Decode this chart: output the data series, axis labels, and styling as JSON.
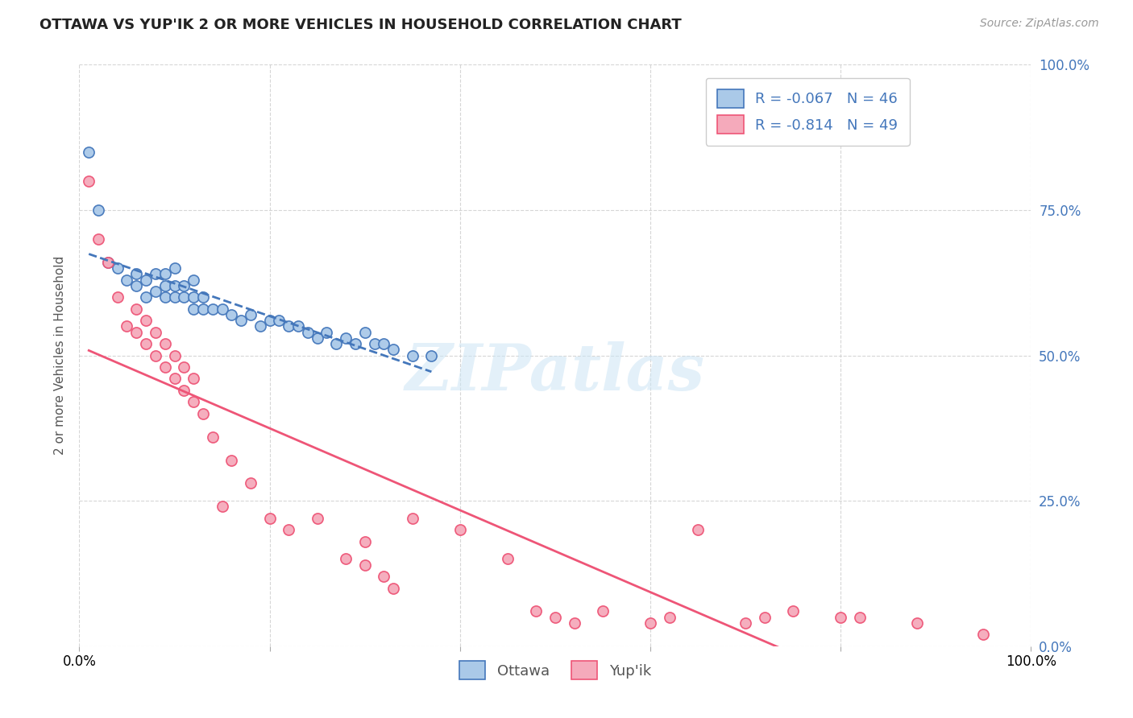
{
  "title": "OTTAWA VS YUP'IK 2 OR MORE VEHICLES IN HOUSEHOLD CORRELATION CHART",
  "source": "Source: ZipAtlas.com",
  "ylabel": "2 or more Vehicles in Household",
  "legend_labels": [
    "Ottawa",
    "Yup'ik"
  ],
  "ottawa_R": -0.067,
  "ottawa_N": 46,
  "yupik_R": -0.814,
  "yupik_N": 49,
  "xlim": [
    0.0,
    1.0
  ],
  "ylim": [
    0.0,
    1.0
  ],
  "watermark": "ZIPatlas",
  "ottawa_color": "#aac9e8",
  "yupik_color": "#f5aabb",
  "ottawa_line_color": "#4477bb",
  "yupik_line_color": "#ee5577",
  "grid_color": "#cccccc",
  "background_color": "#ffffff",
  "ottawa_x": [
    0.01,
    0.02,
    0.03,
    0.04,
    0.05,
    0.06,
    0.06,
    0.07,
    0.07,
    0.08,
    0.08,
    0.09,
    0.09,
    0.09,
    0.1,
    0.1,
    0.1,
    0.11,
    0.11,
    0.12,
    0.12,
    0.12,
    0.13,
    0.13,
    0.14,
    0.15,
    0.16,
    0.17,
    0.18,
    0.19,
    0.2,
    0.21,
    0.22,
    0.23,
    0.24,
    0.25,
    0.26,
    0.27,
    0.28,
    0.29,
    0.3,
    0.31,
    0.32,
    0.33,
    0.35,
    0.37
  ],
  "ottawa_y": [
    0.85,
    0.75,
    0.66,
    0.65,
    0.63,
    0.62,
    0.64,
    0.6,
    0.63,
    0.61,
    0.64,
    0.6,
    0.62,
    0.64,
    0.6,
    0.62,
    0.65,
    0.6,
    0.62,
    0.58,
    0.6,
    0.63,
    0.58,
    0.6,
    0.58,
    0.58,
    0.57,
    0.56,
    0.57,
    0.55,
    0.56,
    0.56,
    0.55,
    0.55,
    0.54,
    0.53,
    0.54,
    0.52,
    0.53,
    0.52,
    0.54,
    0.52,
    0.52,
    0.51,
    0.5,
    0.5
  ],
  "yupik_x": [
    0.01,
    0.02,
    0.03,
    0.04,
    0.05,
    0.06,
    0.06,
    0.07,
    0.07,
    0.08,
    0.08,
    0.09,
    0.09,
    0.1,
    0.1,
    0.11,
    0.11,
    0.12,
    0.12,
    0.13,
    0.14,
    0.15,
    0.16,
    0.18,
    0.2,
    0.22,
    0.25,
    0.28,
    0.3,
    0.3,
    0.32,
    0.33,
    0.35,
    0.4,
    0.45,
    0.48,
    0.5,
    0.52,
    0.55,
    0.6,
    0.62,
    0.65,
    0.7,
    0.72,
    0.75,
    0.8,
    0.82,
    0.88,
    0.95
  ],
  "yupik_y": [
    0.8,
    0.7,
    0.66,
    0.6,
    0.55,
    0.54,
    0.58,
    0.52,
    0.56,
    0.5,
    0.54,
    0.48,
    0.52,
    0.46,
    0.5,
    0.44,
    0.48,
    0.42,
    0.46,
    0.4,
    0.36,
    0.24,
    0.32,
    0.28,
    0.22,
    0.2,
    0.22,
    0.15,
    0.14,
    0.18,
    0.12,
    0.1,
    0.22,
    0.2,
    0.15,
    0.06,
    0.05,
    0.04,
    0.06,
    0.04,
    0.05,
    0.2,
    0.04,
    0.05,
    0.06,
    0.05,
    0.05,
    0.04,
    0.02
  ]
}
